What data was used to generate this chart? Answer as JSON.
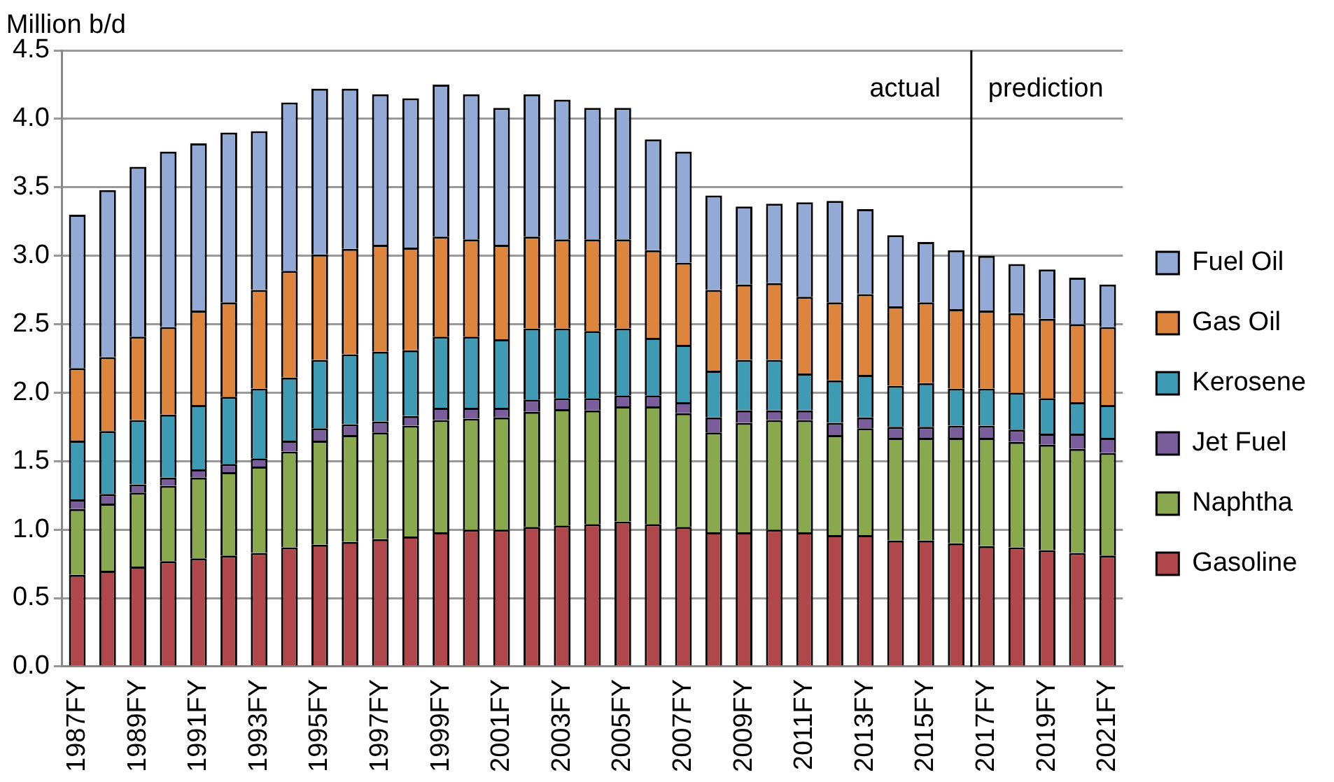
{
  "chart_data": {
    "type": "bar",
    "stacked": true,
    "ylabel": "Million b/d",
    "categories": [
      "1987FY",
      null,
      "1989FY",
      null,
      "1991FY",
      null,
      "1993FY",
      null,
      "1995FY",
      null,
      "1997FY",
      null,
      "1999FY",
      null,
      "2001FY",
      null,
      "2003FY",
      null,
      "2005FY",
      null,
      "2007FY",
      null,
      "2009FY",
      null,
      "2011FY",
      null,
      "2013FY",
      null,
      "2015FY",
      null,
      "2017FY",
      null,
      "2019FY",
      null,
      "2021FY"
    ],
    "series": [
      {
        "name": "Gasoline",
        "color": "#b0474a",
        "values": [
          0.67,
          0.7,
          0.73,
          0.77,
          0.79,
          0.81,
          0.83,
          0.87,
          0.89,
          0.91,
          0.93,
          0.95,
          0.98,
          1.0,
          1.0,
          1.02,
          1.03,
          1.04,
          1.06,
          1.04,
          1.02,
          0.98,
          0.98,
          1.0,
          0.98,
          0.96,
          0.96,
          0.92,
          0.92,
          0.9,
          0.88,
          0.87,
          0.85,
          0.83,
          0.81
        ]
      },
      {
        "name": "Naphtha",
        "color": "#8aa84e",
        "values": [
          0.48,
          0.49,
          0.54,
          0.55,
          0.59,
          0.61,
          0.63,
          0.7,
          0.76,
          0.78,
          0.78,
          0.81,
          0.82,
          0.81,
          0.82,
          0.84,
          0.85,
          0.83,
          0.84,
          0.86,
          0.83,
          0.73,
          0.8,
          0.8,
          0.82,
          0.73,
          0.78,
          0.75,
          0.75,
          0.77,
          0.79,
          0.77,
          0.77,
          0.76,
          0.75
        ]
      },
      {
        "name": "Jet Fuel",
        "color": "#7a5e9c",
        "values": [
          0.07,
          0.07,
          0.06,
          0.06,
          0.06,
          0.06,
          0.06,
          0.08,
          0.09,
          0.08,
          0.08,
          0.07,
          0.09,
          0.08,
          0.07,
          0.09,
          0.08,
          0.09,
          0.08,
          0.08,
          0.08,
          0.11,
          0.09,
          0.07,
          0.07,
          0.09,
          0.08,
          0.08,
          0.08,
          0.09,
          0.09,
          0.09,
          0.08,
          0.11,
          0.11
        ]
      },
      {
        "name": "Kerosene",
        "color": "#3f9bb3",
        "values": [
          0.43,
          0.46,
          0.47,
          0.46,
          0.47,
          0.49,
          0.51,
          0.46,
          0.5,
          0.51,
          0.51,
          0.48,
          0.52,
          0.52,
          0.5,
          0.52,
          0.51,
          0.49,
          0.49,
          0.42,
          0.42,
          0.34,
          0.37,
          0.37,
          0.27,
          0.31,
          0.31,
          0.3,
          0.32,
          0.27,
          0.27,
          0.27,
          0.26,
          0.23,
          0.24
        ]
      },
      {
        "name": "Gas Oil",
        "color": "#dd843d",
        "values": [
          0.53,
          0.54,
          0.61,
          0.64,
          0.69,
          0.69,
          0.72,
          0.78,
          0.77,
          0.77,
          0.78,
          0.75,
          0.73,
          0.71,
          0.69,
          0.67,
          0.65,
          0.67,
          0.65,
          0.64,
          0.6,
          0.59,
          0.55,
          0.56,
          0.56,
          0.57,
          0.59,
          0.58,
          0.59,
          0.58,
          0.57,
          0.58,
          0.58,
          0.57,
          0.57
        ]
      },
      {
        "name": "Fuel Oil",
        "color": "#94aad6",
        "values": [
          1.12,
          1.22,
          1.24,
          1.28,
          1.22,
          1.24,
          1.16,
          1.23,
          1.21,
          1.17,
          1.1,
          1.09,
          1.11,
          1.06,
          1.0,
          1.04,
          1.02,
          0.96,
          0.96,
          0.81,
          0.81,
          0.69,
          0.57,
          0.58,
          0.69,
          0.74,
          0.62,
          0.52,
          0.44,
          0.43,
          0.4,
          0.36,
          0.36,
          0.34,
          0.31
        ]
      }
    ],
    "ylim": [
      0,
      4.5
    ],
    "yticks": [
      {
        "value": 0,
        "label": "0.0"
      },
      {
        "value": 0.5,
        "label": "0.5"
      },
      {
        "value": 1,
        "label": "1.0"
      },
      {
        "value": 1.5,
        "label": "1.5"
      },
      {
        "value": 2,
        "label": "2.0"
      },
      {
        "value": 2.5,
        "label": "2.5"
      },
      {
        "value": 3,
        "label": "3.0"
      },
      {
        "value": 3.5,
        "label": "3.5"
      },
      {
        "value": 4,
        "label": "4.0"
      },
      {
        "value": 4.5,
        "label": "4.5"
      }
    ],
    "ref_lines": [
      {
        "axis": "x",
        "value": "2017FY",
        "color": "#000000"
      }
    ],
    "annotations": [
      "actual",
      "prediction"
    ],
    "grid": "y",
    "legend": "right"
  }
}
